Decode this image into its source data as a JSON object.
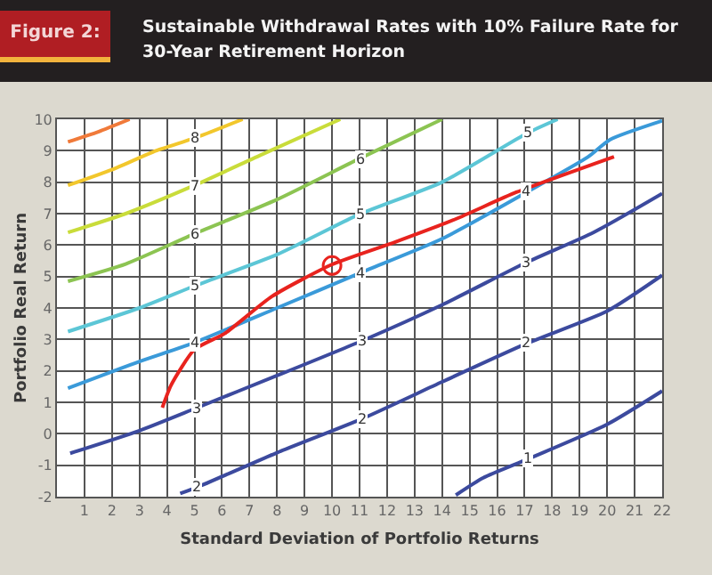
{
  "chart_data": {
    "type": "line",
    "title": "Sustainable Withdrawal Rates with 10% Failure Rate for 30-Year Retirement Horizon",
    "xlabel": "Standard Deviation of Portfolio Returns",
    "ylabel": "Portfolio Real Return",
    "xlim": [
      0,
      22
    ],
    "ylim": [
      -2,
      10
    ],
    "xticks": [
      1,
      2,
      3,
      4,
      5,
      6,
      7,
      8,
      9,
      10,
      11,
      12,
      13,
      14,
      15,
      16,
      17,
      18,
      19,
      20,
      21,
      22
    ],
    "yticks": [
      -2,
      -1,
      0,
      1,
      2,
      3,
      4,
      5,
      6,
      7,
      8,
      9,
      10
    ],
    "grid": true,
    "marker": "none",
    "line_style": "solid",
    "series": [
      {
        "color": "#f07a3a",
        "x": [
          0.4,
          1.5,
          2.64
        ],
        "values": [
          9.28,
          9.6,
          10
        ]
      },
      {
        "color": "#f2c72c",
        "x": [
          0.4,
          2,
          3.6,
          5,
          6.75
        ],
        "values": [
          7.9,
          8.4,
          9.0,
          9.4,
          10
        ]
      },
      {
        "color": "#c9dc3a",
        "x": [
          0.4,
          2.5,
          5,
          7.5,
          10.3
        ],
        "values": [
          6.4,
          7.0,
          7.9,
          8.9,
          10
        ]
      },
      {
        "color": "#8cc452",
        "x": [
          0.4,
          2.5,
          5,
          8,
          11,
          14
        ],
        "values": [
          4.85,
          5.4,
          6.36,
          7.45,
          8.75,
          10
        ]
      },
      {
        "color": "#5cc6d6",
        "x": [
          0.4,
          3,
          5,
          8,
          11,
          14,
          17.1,
          18.2
        ],
        "values": [
          3.25,
          4.0,
          4.7,
          5.7,
          6.98,
          8.0,
          9.56,
          10
        ]
      },
      {
        "color": "#3a9ad9",
        "x": [
          0.4,
          3,
          5,
          8,
          11.06,
          14,
          17.07,
          19.3,
          20.1,
          22
        ],
        "values": [
          1.45,
          2.3,
          2.9,
          4.0,
          5.13,
          6.2,
          7.68,
          8.8,
          9.35,
          9.95
        ]
      },
      {
        "color": "#3c4a9e",
        "x": [
          0.48,
          3,
          5.1,
          8,
          11.1,
          14,
          17.07,
          19.5,
          22
        ],
        "values": [
          -0.62,
          0.1,
          0.83,
          1.85,
          2.96,
          4.1,
          5.45,
          6.4,
          7.64
        ]
      },
      {
        "color": "#3c4a9e",
        "x": [
          4.48,
          5.1,
          8,
          11.1,
          14,
          17.07,
          20,
          22
        ],
        "values": [
          -1.9,
          -1.7,
          -0.6,
          0.48,
          1.65,
          2.87,
          3.9,
          5.04
        ]
      },
      {
        "color": "#3c4a9e",
        "x": [
          14.5,
          15.5,
          17.1,
          20,
          22
        ],
        "values": [
          -1.95,
          -1.4,
          -0.81,
          0.3,
          1.36
        ]
      },
      {
        "color": "#e8231e",
        "x": [
          3.83,
          4.15,
          5.0,
          6.1,
          7.82,
          9.99,
          12.3,
          14.5,
          16.7,
          20.25
        ],
        "values": [
          0.83,
          1.55,
          2.68,
          3.19,
          4.37,
          5.38,
          6.1,
          6.83,
          7.68,
          8.81
        ]
      },
      {
        "type": "scatter",
        "marker": "circle",
        "color": "#e8231e",
        "x": [
          10.0
        ],
        "values": [
          5.35
        ]
      }
    ],
    "annotations": [
      "Figure 2:",
      {
        "text": "8",
        "x": 5.0,
        "y": 9.4
      },
      {
        "text": "7",
        "x": 5.0,
        "y": 7.9
      },
      {
        "text": "6",
        "x": 5.0,
        "y": 6.36
      },
      {
        "text": "6",
        "x": 11.0,
        "y": 8.75
      },
      {
        "text": "5",
        "x": 5.0,
        "y": 4.7
      },
      {
        "text": "5",
        "x": 11.0,
        "y": 6.98
      },
      {
        "text": "5",
        "x": 17.1,
        "y": 9.56
      },
      {
        "text": "4",
        "x": 5.0,
        "y": 2.9
      },
      {
        "text": "4",
        "x": 11.06,
        "y": 5.13
      },
      {
        "text": "4",
        "x": 17.07,
        "y": 7.68
      },
      {
        "text": "3",
        "x": 5.1,
        "y": 0.83
      },
      {
        "text": "3",
        "x": 11.1,
        "y": 2.96
      },
      {
        "text": "3",
        "x": 17.07,
        "y": 5.45
      },
      {
        "text": "2",
        "x": 5.1,
        "y": -1.7
      },
      {
        "text": "2",
        "x": 11.1,
        "y": 0.48
      },
      {
        "text": "2",
        "x": 17.07,
        "y": 2.87
      },
      {
        "text": "1",
        "x": 17.1,
        "y": -0.81
      }
    ]
  }
}
